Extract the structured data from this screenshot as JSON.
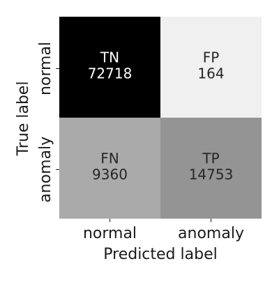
{
  "chart_data": {
    "type": "heatmap",
    "title": "",
    "xlabel": "Predicted label",
    "ylabel": "True label",
    "x_categories": [
      "normal",
      "anomaly"
    ],
    "y_categories": [
      "normal",
      "anomaly"
    ],
    "cells": [
      [
        {
          "label": "TN",
          "value": 72718
        },
        {
          "label": "FP",
          "value": 164
        }
      ],
      [
        {
          "label": "FN",
          "value": 9360
        },
        {
          "label": "TP",
          "value": 14753
        }
      ]
    ],
    "colormap": {
      "low": "#ffffff",
      "high": "#000000"
    },
    "grid": false,
    "legend": "none"
  }
}
